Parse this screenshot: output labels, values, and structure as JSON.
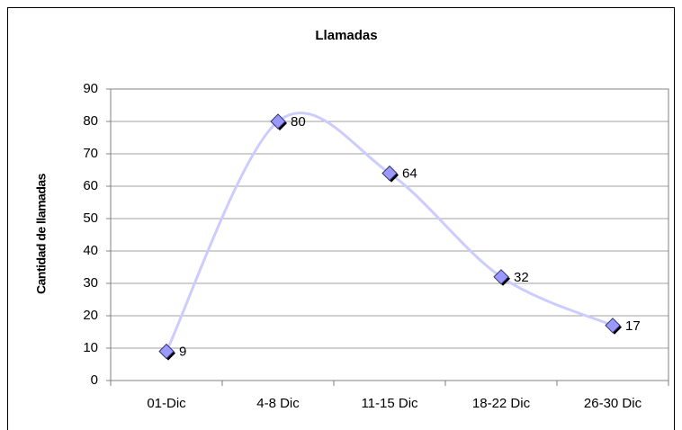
{
  "chart_data": {
    "type": "line",
    "title": "Llamadas",
    "y_label": "Cantidad de llamadas",
    "categories": [
      "01-Dic",
      "4-8 Dic",
      "11-15 Dic",
      "18-22 Dic",
      "26-30 Dic"
    ],
    "values": [
      9,
      80,
      64,
      32,
      17
    ],
    "color": "#ccccff",
    "marker_color": "#9999ff",
    "smooth": true,
    "data_labels": true,
    "ylim": [
      0,
      90
    ],
    "yticks": [
      0,
      10,
      20,
      30,
      40,
      50,
      60,
      70,
      80,
      90
    ],
    "grid": true
  }
}
